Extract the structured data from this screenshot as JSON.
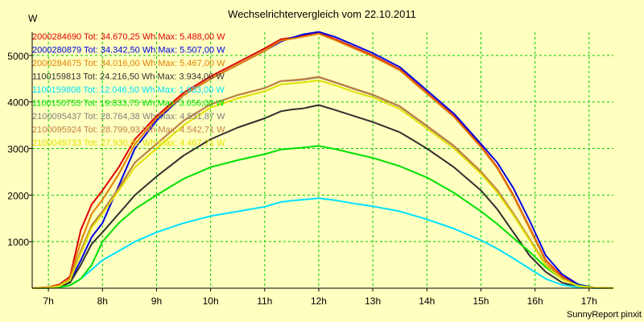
{
  "chart_data": {
    "type": "line",
    "title": "Wechselrichtervergleich vom 22.10.2011",
    "ylabel": "W",
    "xlabel": "",
    "footer": "SunnyReport pinxit",
    "x_ticks": [
      7,
      8,
      9,
      10,
      11,
      12,
      13,
      14,
      15,
      16,
      17
    ],
    "x_tick_labels": [
      "7h",
      "8h",
      "9h",
      "10h",
      "11h",
      "12h",
      "13h",
      "14h",
      "15h",
      "16h",
      "17h"
    ],
    "y_ticks": [
      1000,
      2000,
      3000,
      4000,
      5000
    ],
    "y_tick_labels": [
      "1000",
      "2000",
      "3000",
      "4000",
      "5000"
    ],
    "xlim": [
      6.7,
      17.45
    ],
    "ylim": [
      0,
      5500
    ],
    "grid": true,
    "legend_position": "top-left",
    "background_color": "#ffffc0",
    "plot_background_color": "#ffffc0",
    "grid_color": "#00cc00",
    "series": [
      {
        "label": "2000284690 Tot: 34.670,25 Wh Max: 5.488,00 W",
        "color": "#e00000",
        "points": [
          [
            6.7,
            0
          ],
          [
            7,
            20
          ],
          [
            7.2,
            80
          ],
          [
            7.4,
            250
          ],
          [
            7.6,
            1250
          ],
          [
            7.8,
            1800
          ],
          [
            8,
            2100
          ],
          [
            8.3,
            2600
          ],
          [
            8.6,
            3200
          ],
          [
            9,
            3700
          ],
          [
            9.5,
            4200
          ],
          [
            10,
            4550
          ],
          [
            10.5,
            4850
          ],
          [
            11,
            5150
          ],
          [
            11.3,
            5350
          ],
          [
            11.5,
            5380
          ],
          [
            11.7,
            5420
          ],
          [
            12,
            5488
          ],
          [
            12.3,
            5350
          ],
          [
            12.7,
            5150
          ],
          [
            13,
            5000
          ],
          [
            13.5,
            4700
          ],
          [
            14,
            4200
          ],
          [
            14.5,
            3700
          ],
          [
            15,
            3050
          ],
          [
            15.3,
            2600
          ],
          [
            15.6,
            2000
          ],
          [
            15.9,
            1300
          ],
          [
            16.2,
            600
          ],
          [
            16.5,
            250
          ],
          [
            16.8,
            60
          ],
          [
            17.1,
            10
          ],
          [
            17.45,
            0
          ]
        ]
      },
      {
        "label": "2000280879 Tot: 34.342,50 Wh Max: 5.507,00 W",
        "color": "#0000e0",
        "points": [
          [
            6.7,
            0
          ],
          [
            7,
            10
          ],
          [
            7.2,
            40
          ],
          [
            7.4,
            150
          ],
          [
            7.6,
            600
          ],
          [
            7.8,
            1100
          ],
          [
            8,
            1400
          ],
          [
            8.3,
            2200
          ],
          [
            8.6,
            3000
          ],
          [
            9,
            3600
          ],
          [
            9.5,
            4150
          ],
          [
            10,
            4500
          ],
          [
            10.5,
            4800
          ],
          [
            11,
            5100
          ],
          [
            11.3,
            5300
          ],
          [
            11.5,
            5380
          ],
          [
            11.7,
            5450
          ],
          [
            12,
            5507
          ],
          [
            12.3,
            5400
          ],
          [
            12.7,
            5200
          ],
          [
            13,
            5050
          ],
          [
            13.5,
            4750
          ],
          [
            14,
            4250
          ],
          [
            14.5,
            3750
          ],
          [
            15,
            3100
          ],
          [
            15.3,
            2700
          ],
          [
            15.6,
            2150
          ],
          [
            15.9,
            1450
          ],
          [
            16.2,
            700
          ],
          [
            16.5,
            300
          ],
          [
            16.8,
            80
          ],
          [
            17.1,
            10
          ],
          [
            17.45,
            0
          ]
        ]
      },
      {
        "label": "2000284675 Tot: 34.016,00 Wh Max: 5.467,00 W",
        "color": "#e08000",
        "points": [
          [
            6.7,
            0
          ],
          [
            7,
            15
          ],
          [
            7.2,
            60
          ],
          [
            7.4,
            220
          ],
          [
            7.6,
            1000
          ],
          [
            7.8,
            1600
          ],
          [
            8,
            1900
          ],
          [
            8.3,
            2450
          ],
          [
            8.6,
            3100
          ],
          [
            9,
            3650
          ],
          [
            9.5,
            4150
          ],
          [
            10,
            4500
          ],
          [
            10.5,
            4800
          ],
          [
            11,
            5100
          ],
          [
            11.3,
            5320
          ],
          [
            11.5,
            5360
          ],
          [
            11.7,
            5400
          ],
          [
            12,
            5467
          ],
          [
            12.3,
            5330
          ],
          [
            12.7,
            5130
          ],
          [
            13,
            4980
          ],
          [
            13.5,
            4680
          ],
          [
            14,
            4180
          ],
          [
            14.5,
            3680
          ],
          [
            15,
            3030
          ],
          [
            15.3,
            2580
          ],
          [
            15.6,
            1980
          ],
          [
            15.9,
            1280
          ],
          [
            16.2,
            580
          ],
          [
            16.5,
            230
          ],
          [
            16.8,
            50
          ],
          [
            17.1,
            10
          ],
          [
            17.45,
            0
          ]
        ]
      },
      {
        "label": "1100159813 Tot: 24.216,50 Wh Max: 3.934,00 W",
        "color": "#303030",
        "points": [
          [
            6.7,
            0
          ],
          [
            7,
            10
          ],
          [
            7.2,
            30
          ],
          [
            7.4,
            120
          ],
          [
            7.6,
            500
          ],
          [
            7.8,
            950
          ],
          [
            8,
            1200
          ],
          [
            8.3,
            1600
          ],
          [
            8.6,
            2000
          ],
          [
            9,
            2400
          ],
          [
            9.5,
            2850
          ],
          [
            10,
            3200
          ],
          [
            10.5,
            3450
          ],
          [
            11,
            3650
          ],
          [
            11.3,
            3800
          ],
          [
            11.5,
            3840
          ],
          [
            11.7,
            3860
          ],
          [
            12,
            3934
          ],
          [
            12.3,
            3830
          ],
          [
            12.7,
            3680
          ],
          [
            13,
            3570
          ],
          [
            13.5,
            3350
          ],
          [
            14,
            3000
          ],
          [
            14.5,
            2600
          ],
          [
            15,
            2100
          ],
          [
            15.3,
            1700
          ],
          [
            15.6,
            1200
          ],
          [
            15.9,
            700
          ],
          [
            16.2,
            350
          ],
          [
            16.5,
            120
          ],
          [
            16.8,
            30
          ],
          [
            17.1,
            5
          ],
          [
            17.45,
            0
          ]
        ]
      },
      {
        "label": "1100159808 Tot: 12.046,50 Wh Max: 1.933,00 W",
        "color": "#00e0ff",
        "points": [
          [
            6.7,
            0
          ],
          [
            7,
            5
          ],
          [
            7.2,
            20
          ],
          [
            7.4,
            60
          ],
          [
            7.6,
            200
          ],
          [
            7.8,
            400
          ],
          [
            8,
            600
          ],
          [
            8.3,
            800
          ],
          [
            8.6,
            1000
          ],
          [
            9,
            1200
          ],
          [
            9.5,
            1400
          ],
          [
            10,
            1550
          ],
          [
            10.5,
            1650
          ],
          [
            11,
            1750
          ],
          [
            11.3,
            1850
          ],
          [
            11.5,
            1880
          ],
          [
            11.7,
            1900
          ],
          [
            12,
            1933
          ],
          [
            12.3,
            1890
          ],
          [
            12.7,
            1810
          ],
          [
            13,
            1760
          ],
          [
            13.5,
            1650
          ],
          [
            14,
            1480
          ],
          [
            14.5,
            1280
          ],
          [
            15,
            1030
          ],
          [
            15.3,
            850
          ],
          [
            15.6,
            640
          ],
          [
            15.9,
            420
          ],
          [
            16.2,
            200
          ],
          [
            16.5,
            70
          ],
          [
            16.8,
            20
          ],
          [
            17.1,
            5
          ],
          [
            17.45,
            0
          ]
        ]
      },
      {
        "label": "1100150753 Tot: 19.833,75 Wh Max: 3.056,00 W",
        "color": "#00e000",
        "points": [
          [
            6.7,
            0
          ],
          [
            7,
            5
          ],
          [
            7.2,
            20
          ],
          [
            7.4,
            60
          ],
          [
            7.6,
            200
          ],
          [
            7.8,
            500
          ],
          [
            8,
            1000
          ],
          [
            8.3,
            1400
          ],
          [
            8.6,
            1700
          ],
          [
            9,
            2000
          ],
          [
            9.5,
            2350
          ],
          [
            10,
            2600
          ],
          [
            10.5,
            2750
          ],
          [
            11,
            2880
          ],
          [
            11.3,
            2980
          ],
          [
            11.5,
            3000
          ],
          [
            11.7,
            3020
          ],
          [
            12,
            3056
          ],
          [
            12.3,
            2990
          ],
          [
            12.7,
            2880
          ],
          [
            13,
            2800
          ],
          [
            13.5,
            2620
          ],
          [
            14,
            2380
          ],
          [
            14.5,
            2050
          ],
          [
            15,
            1650
          ],
          [
            15.3,
            1380
          ],
          [
            15.6,
            1080
          ],
          [
            15.9,
            780
          ],
          [
            16.2,
            450
          ],
          [
            16.5,
            200
          ],
          [
            16.8,
            60
          ],
          [
            17.1,
            10
          ],
          [
            17.45,
            0
          ]
        ]
      },
      {
        "label": "2100095437 Tot: 28.764,38 Wh Max: 4.531,87 W",
        "color": "#808080",
        "points": [
          [
            6.7,
            0
          ],
          [
            7,
            10
          ],
          [
            7.2,
            50
          ],
          [
            7.4,
            180
          ],
          [
            7.6,
            800
          ],
          [
            7.8,
            1350
          ],
          [
            8,
            1650
          ],
          [
            8.3,
            2150
          ],
          [
            8.6,
            2700
          ],
          [
            9,
            3100
          ],
          [
            9.5,
            3600
          ],
          [
            10,
            3950
          ],
          [
            10.5,
            4150
          ],
          [
            11,
            4300
          ],
          [
            11.3,
            4450
          ],
          [
            11.5,
            4460
          ],
          [
            11.7,
            4480
          ],
          [
            12,
            4531
          ],
          [
            12.3,
            4420
          ],
          [
            12.7,
            4260
          ],
          [
            13,
            4150
          ],
          [
            13.5,
            3900
          ],
          [
            14,
            3480
          ],
          [
            14.5,
            3050
          ],
          [
            15,
            2500
          ],
          [
            15.3,
            2100
          ],
          [
            15.6,
            1600
          ],
          [
            15.9,
            1050
          ],
          [
            16.2,
            500
          ],
          [
            16.5,
            200
          ],
          [
            16.8,
            50
          ],
          [
            17.1,
            10
          ],
          [
            17.45,
            0
          ]
        ]
      },
      {
        "label": "2100095924 Tot: 28.799,93 Wh Max: 4.542,71 W",
        "color": "#c08040",
        "points": [
          [
            6.7,
            0
          ],
          [
            7,
            10
          ],
          [
            7.2,
            50
          ],
          [
            7.4,
            180
          ],
          [
            7.6,
            800
          ],
          [
            7.8,
            1350
          ],
          [
            8,
            1650
          ],
          [
            8.3,
            2150
          ],
          [
            8.6,
            2700
          ],
          [
            9,
            3100
          ],
          [
            9.5,
            3600
          ],
          [
            10,
            3950
          ],
          [
            10.5,
            4150
          ],
          [
            11,
            4300
          ],
          [
            11.3,
            4450
          ],
          [
            11.5,
            4470
          ],
          [
            11.7,
            4490
          ],
          [
            12,
            4542
          ],
          [
            12.3,
            4430
          ],
          [
            12.7,
            4270
          ],
          [
            13,
            4160
          ],
          [
            13.5,
            3910
          ],
          [
            14,
            3490
          ],
          [
            14.5,
            3060
          ],
          [
            15,
            2510
          ],
          [
            15.3,
            2110
          ],
          [
            15.6,
            1610
          ],
          [
            15.9,
            1060
          ],
          [
            16.2,
            510
          ],
          [
            16.5,
            210
          ],
          [
            16.8,
            50
          ],
          [
            17.1,
            10
          ],
          [
            17.45,
            0
          ]
        ]
      },
      {
        "label": "2100049733 Tot: 27.930,63 Wh Max: 4.467,71 W",
        "color": "#e0e000",
        "points": [
          [
            6.7,
            0
          ],
          [
            7,
            10
          ],
          [
            7.2,
            45
          ],
          [
            7.4,
            170
          ],
          [
            7.6,
            750
          ],
          [
            7.8,
            1300
          ],
          [
            8,
            1600
          ],
          [
            8.3,
            2100
          ],
          [
            8.6,
            2600
          ],
          [
            9,
            3000
          ],
          [
            9.5,
            3500
          ],
          [
            10,
            3880
          ],
          [
            10.5,
            4080
          ],
          [
            11,
            4230
          ],
          [
            11.3,
            4380
          ],
          [
            11.5,
            4400
          ],
          [
            11.7,
            4420
          ],
          [
            12,
            4467
          ],
          [
            12.3,
            4360
          ],
          [
            12.7,
            4200
          ],
          [
            13,
            4100
          ],
          [
            13.5,
            3850
          ],
          [
            14,
            3430
          ],
          [
            14.5,
            3000
          ],
          [
            15,
            2460
          ],
          [
            15.3,
            2060
          ],
          [
            15.6,
            1570
          ],
          [
            15.9,
            1030
          ],
          [
            16.2,
            490
          ],
          [
            16.5,
            190
          ],
          [
            16.8,
            45
          ],
          [
            17.1,
            8
          ],
          [
            17.45,
            0
          ]
        ]
      }
    ]
  }
}
